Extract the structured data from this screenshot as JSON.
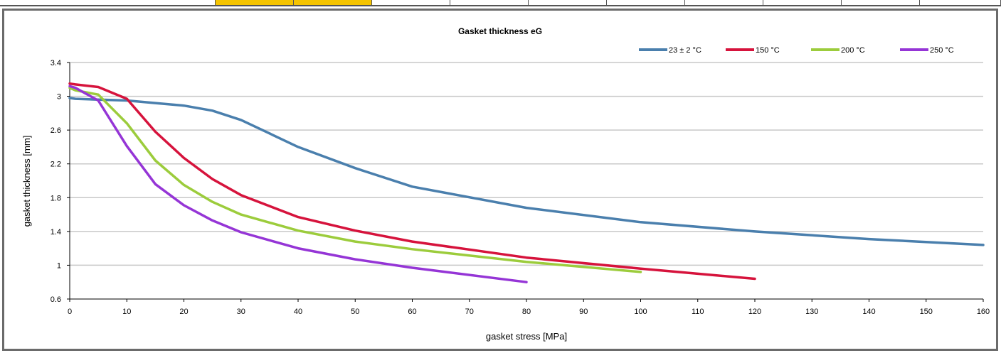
{
  "chart_data": {
    "type": "line",
    "title": "Gasket thickness eG",
    "xlabel": "gasket stress [MPa]",
    "ylabel": "gasket thickness [mm]",
    "xlim": [
      0,
      160
    ],
    "ylim": [
      0.6,
      3.4
    ],
    "xticks": [
      0,
      10,
      20,
      30,
      40,
      50,
      60,
      70,
      80,
      90,
      100,
      110,
      120,
      130,
      140,
      150,
      160
    ],
    "yticks": [
      0.6,
      1,
      1.4,
      1.8,
      2.2,
      2.6,
      3,
      3.4
    ],
    "ytick_labels": [
      "0.6",
      "1",
      "1.4",
      "1.8",
      "2.2",
      "2.6",
      "3",
      "3.4"
    ],
    "grid": "horizontal",
    "legend_position": "top-right",
    "series": [
      {
        "name": "23 ± 2 °C",
        "color": "#4a7fad",
        "x": [
          0,
          1,
          5,
          10,
          15,
          20,
          25,
          30,
          40,
          50,
          60,
          80,
          100,
          120,
          140,
          160
        ],
        "y": [
          2.98,
          2.97,
          2.96,
          2.95,
          2.92,
          2.89,
          2.83,
          2.72,
          2.4,
          2.15,
          1.93,
          1.68,
          1.51,
          1.4,
          1.31,
          1.24
        ]
      },
      {
        "name": "150 °C",
        "color": "#d6133c",
        "x": [
          0,
          1,
          5,
          10,
          15,
          20,
          25,
          30,
          40,
          50,
          60,
          80,
          100,
          120
        ],
        "y": [
          3.15,
          3.14,
          3.11,
          2.97,
          2.58,
          2.27,
          2.02,
          1.83,
          1.57,
          1.41,
          1.28,
          1.09,
          0.96,
          0.84
        ]
      },
      {
        "name": "200 °C",
        "color": "#9ccc3c",
        "x": [
          0,
          1,
          5,
          10,
          15,
          20,
          25,
          30,
          40,
          50,
          60,
          80,
          100
        ],
        "y": [
          3.1,
          3.07,
          3.02,
          2.68,
          2.24,
          1.95,
          1.75,
          1.6,
          1.41,
          1.28,
          1.19,
          1.04,
          0.92
        ]
      },
      {
        "name": "250 °C",
        "color": "#9535d6",
        "x": [
          0,
          1,
          5,
          10,
          15,
          20,
          25,
          30,
          40,
          50,
          60,
          80
        ],
        "y": [
          3.12,
          3.1,
          2.95,
          2.41,
          1.96,
          1.71,
          1.53,
          1.39,
          1.2,
          1.07,
          0.97,
          0.8
        ]
      }
    ]
  },
  "top_strip": {
    "highlight_color": "#f5c400"
  }
}
